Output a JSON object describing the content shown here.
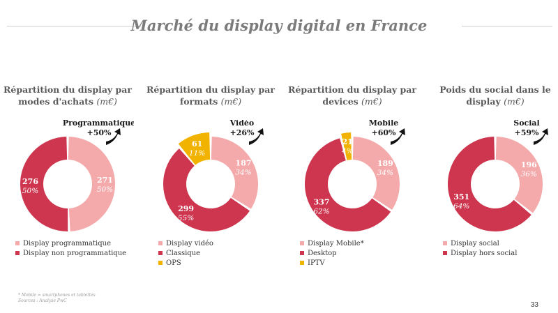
{
  "page": {
    "title": "Marché du display digital en France",
    "footnote_1": "* Mobile = smartphones et tablettes",
    "footnote_2": "Sources : Analyse PwC",
    "page_number": "33"
  },
  "colors": {
    "light": "#f4a9aa",
    "dark": "#cd364e",
    "gold": "#f2b300",
    "title": "#7b7b7b"
  },
  "chart_data": [
    {
      "type": "pie",
      "title": "Répartition du display par modes d'achats",
      "unit": "(m€)",
      "growth": {
        "name": "Programmatique",
        "value": "+50%"
      },
      "slices": [
        {
          "label": "Display programmatique",
          "value": 271,
          "pct": "50%",
          "color": "light"
        },
        {
          "label": "Display non programmatique",
          "value": 276,
          "pct": "50%",
          "color": "dark"
        }
      ]
    },
    {
      "type": "pie",
      "title": "Répartition du display par formats",
      "unit": "(m€)",
      "growth": {
        "name": "Vidéo",
        "value": "+26%"
      },
      "slices": [
        {
          "label": "Display vidéo",
          "value": 187,
          "pct": "34%",
          "color": "light"
        },
        {
          "label": "Classique",
          "value": 299,
          "pct": "55%",
          "color": "dark"
        },
        {
          "label": "OPS",
          "value": 61,
          "pct": "11%",
          "color": "gold"
        }
      ]
    },
    {
      "type": "pie",
      "title": "Répartition du display par devices",
      "unit": "(m€)",
      "growth": {
        "name": "Mobile",
        "value": "+60%"
      },
      "slices": [
        {
          "label": "Display Mobile*",
          "value": 189,
          "pct": "34%",
          "color": "light"
        },
        {
          "label": "Desktop",
          "value": 337,
          "pct": "62%",
          "color": "dark"
        },
        {
          "label": "IPTV",
          "value": 21,
          "pct": "4%",
          "color": "gold"
        }
      ]
    },
    {
      "type": "pie",
      "title": "Poids du social dans le display",
      "unit": "(m€)",
      "growth": {
        "name": "Social",
        "value": "+59%"
      },
      "slices": [
        {
          "label": "Display social",
          "value": 196,
          "pct": "36%",
          "color": "light"
        },
        {
          "label": "Display hors social",
          "value": 351,
          "pct": "64%",
          "color": "dark"
        }
      ]
    }
  ]
}
